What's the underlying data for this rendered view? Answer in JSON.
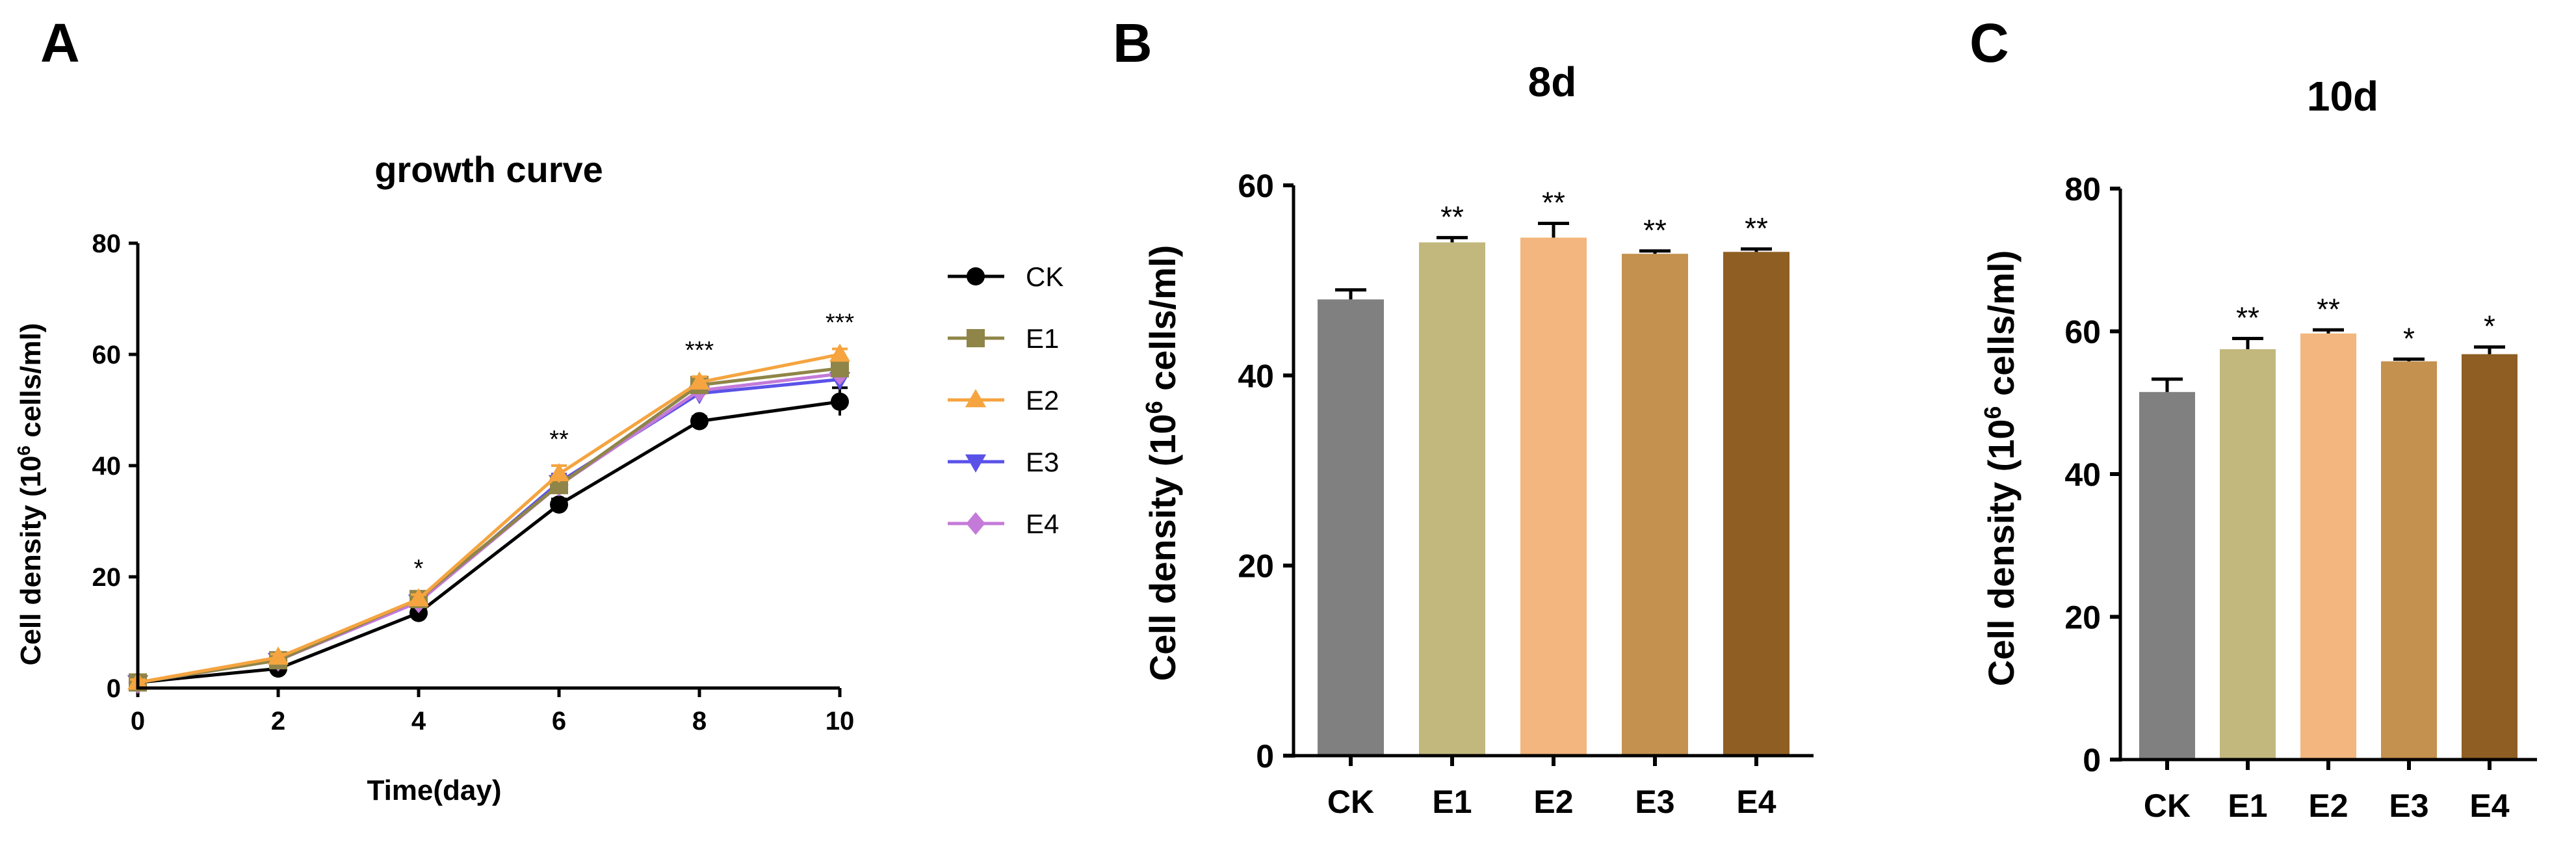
{
  "figure": {
    "panels": [
      "A",
      "B",
      "C"
    ]
  },
  "chart_data": [
    {
      "panel": "A",
      "type": "line",
      "title": "growth curve",
      "xlabel": "Time(day)",
      "ylabel_pre": "Cell density (10",
      "ylabel_sup": "6",
      "ylabel_post": " cells/ml)",
      "x": [
        0,
        2,
        4,
        6,
        8,
        10
      ],
      "xlim": [
        0,
        10
      ],
      "ylim": [
        0,
        80
      ],
      "xticks": [
        "0",
        "2",
        "4",
        "6",
        "8",
        "10"
      ],
      "yticks": [
        "0",
        "20",
        "40",
        "60",
        "80"
      ],
      "series": [
        {
          "name": "CK",
          "color": "#000000",
          "marker": "circle",
          "values": [
            1,
            3.5,
            13.5,
            33,
            48,
            51.5
          ],
          "err": [
            0.5,
            0.5,
            0.8,
            1,
            0.8,
            2.5
          ]
        },
        {
          "name": "E1",
          "color": "#8f8548",
          "marker": "square",
          "values": [
            1,
            5,
            16,
            36.5,
            54.5,
            57.5
          ],
          "err": [
            0.5,
            0.6,
            0.8,
            1.5,
            1,
            1.5
          ]
        },
        {
          "name": "E2",
          "color": "#f5a440",
          "marker": "triangle-up",
          "values": [
            1,
            5.5,
            16,
            38.5,
            55,
            60
          ],
          "err": [
            0.5,
            0.6,
            0.8,
            1.5,
            1,
            1
          ]
        },
        {
          "name": "E3",
          "color": "#5a52e8",
          "marker": "triangle-down",
          "values": [
            1,
            5,
            15.5,
            37,
            53,
            55.5
          ],
          "err": [
            0.5,
            0.6,
            0.8,
            1.5,
            1,
            1
          ]
        },
        {
          "name": "E4",
          "color": "#c47ad9",
          "marker": "diamond",
          "values": [
            1,
            5,
            15.5,
            36.5,
            53.5,
            56.5
          ],
          "err": [
            0.5,
            0.6,
            0.8,
            1.5,
            1,
            1
          ]
        }
      ],
      "significance": [
        {
          "x": 4,
          "label": "*"
        },
        {
          "x": 6,
          "label": "**"
        },
        {
          "x": 8,
          "label": "***"
        },
        {
          "x": 10,
          "label": "***"
        }
      ]
    },
    {
      "panel": "B",
      "type": "bar",
      "title": "8d",
      "xlabel": "",
      "ylabel_pre": "Cell density (10",
      "ylabel_sup": "6",
      "ylabel_post": " cells/ml)",
      "categories": [
        "CK",
        "E1",
        "E2",
        "E3",
        "E4"
      ],
      "values": [
        48,
        54,
        54.5,
        52.8,
        53
      ],
      "err": [
        1,
        0.5,
        1.5,
        0.3,
        0.3
      ],
      "colors": [
        "#808080",
        "#c2b87e",
        "#f2b67e",
        "#c4914e",
        "#8f5e22"
      ],
      "significance": [
        "",
        "**",
        "**",
        "**",
        "**"
      ],
      "ylim": [
        0,
        60
      ],
      "yticks": [
        "0",
        "20",
        "40",
        "60"
      ]
    },
    {
      "panel": "C",
      "type": "bar",
      "title": "10d",
      "xlabel": "",
      "ylabel_pre": "Cell density (10",
      "ylabel_sup": "6",
      "ylabel_post": " cells/ml)",
      "categories": [
        "CK",
        "E1",
        "E2",
        "E3",
        "E4"
      ],
      "values": [
        51.5,
        57.5,
        59.7,
        55.8,
        56.8
      ],
      "err": [
        1.8,
        1.5,
        0.5,
        0.3,
        1
      ],
      "colors": [
        "#808080",
        "#c2b87e",
        "#f2b67e",
        "#c4914e",
        "#8f5e22"
      ],
      "significance": [
        "",
        "**",
        "**",
        "*",
        "*"
      ],
      "ylim": [
        0,
        80
      ],
      "yticks": [
        "0",
        "20",
        "40",
        "60",
        "80"
      ]
    }
  ]
}
